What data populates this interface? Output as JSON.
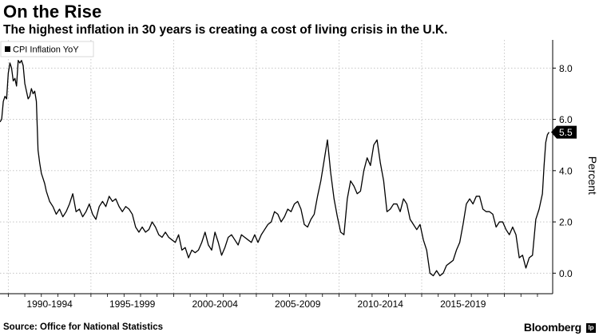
{
  "header": {
    "title": "On the Rise",
    "subtitle": "The highest inflation in 30 years is creating a cost of living crisis in the U.K."
  },
  "footer": {
    "source": "Source: Office for National Statistics",
    "brand": "Bloomberg",
    "brand_mark": "lp"
  },
  "colors": {
    "line": "#000000",
    "grid": "#bdbdbd",
    "background": "#ffffff",
    "badge": "#000000"
  },
  "chart_data": {
    "type": "line",
    "title": "On the Rise",
    "subtitle": "The highest inflation in 30 years is creating a cost of living crisis in the U.K.",
    "xlabel": "",
    "ylabel": "Percent",
    "legend": {
      "position": "top-left",
      "entries": [
        "CPI Inflation YoY"
      ]
    },
    "grid": true,
    "ylim": [
      -0.8,
      9.1
    ],
    "xlim": [
      1989.0,
      2022.42
    ],
    "y_ticks": [
      0.0,
      2.0,
      4.0,
      6.0,
      8.0
    ],
    "y_tick_labels": [
      "0.0",
      "2.0",
      "4.0",
      "6.0",
      "8.0"
    ],
    "x_period_labels": [
      "1990-1994",
      "1995-1999",
      "2000-2004",
      "2005-2009",
      "2010-2014",
      "2015-2019"
    ],
    "x_period_centers": [
      1992.0,
      1997.0,
      2002.0,
      2007.0,
      2012.0,
      2017.0
    ],
    "x_gridlines": [
      1989.5,
      1994.5,
      1999.5,
      2004.5,
      2009.5,
      2014.5,
      2019.5
    ],
    "last_value_label": "5.5",
    "series": [
      {
        "name": "CPI Inflation YoY",
        "points": [
          [
            1989.0,
            5.9
          ],
          [
            1989.1,
            6.0
          ],
          [
            1989.2,
            6.7
          ],
          [
            1989.3,
            6.9
          ],
          [
            1989.4,
            6.8
          ],
          [
            1989.5,
            7.8
          ],
          [
            1989.6,
            8.2
          ],
          [
            1989.7,
            8.0
          ],
          [
            1989.8,
            7.5
          ],
          [
            1989.9,
            7.6
          ],
          [
            1990.0,
            7.3
          ],
          [
            1990.1,
            8.3
          ],
          [
            1990.2,
            8.2
          ],
          [
            1990.3,
            8.3
          ],
          [
            1990.4,
            8.1
          ],
          [
            1990.5,
            7.4
          ],
          [
            1990.6,
            7.1
          ],
          [
            1990.7,
            6.8
          ],
          [
            1990.8,
            6.9
          ],
          [
            1990.9,
            7.2
          ],
          [
            1991.0,
            7.0
          ],
          [
            1991.1,
            7.1
          ],
          [
            1991.2,
            6.7
          ],
          [
            1991.3,
            4.8
          ],
          [
            1991.4,
            4.3
          ],
          [
            1991.5,
            3.9
          ],
          [
            1991.6,
            3.7
          ],
          [
            1991.7,
            3.5
          ],
          [
            1991.8,
            3.2
          ],
          [
            1991.9,
            3.0
          ],
          [
            1992.0,
            2.8
          ],
          [
            1992.2,
            2.6
          ],
          [
            1992.4,
            2.3
          ],
          [
            1992.6,
            2.5
          ],
          [
            1992.8,
            2.2
          ],
          [
            1993.0,
            2.4
          ],
          [
            1993.2,
            2.7
          ],
          [
            1993.4,
            3.1
          ],
          [
            1993.6,
            2.4
          ],
          [
            1993.8,
            2.5
          ],
          [
            1994.0,
            2.2
          ],
          [
            1994.2,
            2.4
          ],
          [
            1994.4,
            2.7
          ],
          [
            1994.6,
            2.3
          ],
          [
            1994.8,
            2.1
          ],
          [
            1995.0,
            2.6
          ],
          [
            1995.2,
            2.8
          ],
          [
            1995.4,
            2.6
          ],
          [
            1995.6,
            3.0
          ],
          [
            1995.8,
            2.8
          ],
          [
            1996.0,
            2.9
          ],
          [
            1996.2,
            2.6
          ],
          [
            1996.4,
            2.4
          ],
          [
            1996.6,
            2.6
          ],
          [
            1996.8,
            2.5
          ],
          [
            1997.0,
            2.3
          ],
          [
            1997.2,
            1.8
          ],
          [
            1997.4,
            1.6
          ],
          [
            1997.6,
            1.8
          ],
          [
            1997.8,
            1.6
          ],
          [
            1998.0,
            1.7
          ],
          [
            1998.2,
            2.0
          ],
          [
            1998.4,
            1.8
          ],
          [
            1998.6,
            1.5
          ],
          [
            1998.8,
            1.4
          ],
          [
            1999.0,
            1.6
          ],
          [
            1999.2,
            1.4
          ],
          [
            1999.4,
            1.3
          ],
          [
            1999.6,
            1.2
          ],
          [
            1999.8,
            1.5
          ],
          [
            2000.0,
            0.9
          ],
          [
            2000.2,
            1.0
          ],
          [
            2000.4,
            0.6
          ],
          [
            2000.6,
            0.9
          ],
          [
            2000.8,
            0.8
          ],
          [
            2001.0,
            0.9
          ],
          [
            2001.2,
            1.2
          ],
          [
            2001.4,
            1.6
          ],
          [
            2001.6,
            1.1
          ],
          [
            2001.8,
            0.9
          ],
          [
            2002.0,
            1.6
          ],
          [
            2002.2,
            1.2
          ],
          [
            2002.4,
            0.7
          ],
          [
            2002.6,
            1.0
          ],
          [
            2002.8,
            1.4
          ],
          [
            2003.0,
            1.5
          ],
          [
            2003.2,
            1.3
          ],
          [
            2003.4,
            1.1
          ],
          [
            2003.6,
            1.5
          ],
          [
            2003.8,
            1.4
          ],
          [
            2004.0,
            1.3
          ],
          [
            2004.2,
            1.2
          ],
          [
            2004.4,
            1.5
          ],
          [
            2004.6,
            1.2
          ],
          [
            2004.8,
            1.5
          ],
          [
            2005.0,
            1.7
          ],
          [
            2005.2,
            1.9
          ],
          [
            2005.4,
            2.0
          ],
          [
            2005.6,
            2.4
          ],
          [
            2005.8,
            2.3
          ],
          [
            2006.0,
            2.0
          ],
          [
            2006.2,
            2.2
          ],
          [
            2006.4,
            2.5
          ],
          [
            2006.6,
            2.4
          ],
          [
            2006.8,
            2.7
          ],
          [
            2007.0,
            2.8
          ],
          [
            2007.2,
            2.5
          ],
          [
            2007.4,
            1.9
          ],
          [
            2007.6,
            1.8
          ],
          [
            2007.8,
            2.1
          ],
          [
            2008.0,
            2.3
          ],
          [
            2008.2,
            3.0
          ],
          [
            2008.4,
            3.6
          ],
          [
            2008.6,
            4.4
          ],
          [
            2008.8,
            5.2
          ],
          [
            2009.0,
            3.9
          ],
          [
            2009.2,
            2.9
          ],
          [
            2009.4,
            2.2
          ],
          [
            2009.6,
            1.6
          ],
          [
            2009.8,
            1.5
          ],
          [
            2010.0,
            2.9
          ],
          [
            2010.2,
            3.6
          ],
          [
            2010.4,
            3.4
          ],
          [
            2010.6,
            3.1
          ],
          [
            2010.8,
            3.2
          ],
          [
            2011.0,
            4.0
          ],
          [
            2011.2,
            4.5
          ],
          [
            2011.4,
            4.2
          ],
          [
            2011.6,
            5.0
          ],
          [
            2011.8,
            5.2
          ],
          [
            2012.0,
            4.3
          ],
          [
            2012.2,
            3.6
          ],
          [
            2012.4,
            2.4
          ],
          [
            2012.6,
            2.5
          ],
          [
            2012.8,
            2.7
          ],
          [
            2013.0,
            2.7
          ],
          [
            2013.2,
            2.4
          ],
          [
            2013.4,
            2.9
          ],
          [
            2013.6,
            2.7
          ],
          [
            2013.8,
            2.1
          ],
          [
            2014.0,
            1.9
          ],
          [
            2014.2,
            1.7
          ],
          [
            2014.4,
            1.9
          ],
          [
            2014.6,
            1.3
          ],
          [
            2014.8,
            0.9
          ],
          [
            2015.0,
            0.0
          ],
          [
            2015.2,
            -0.1
          ],
          [
            2015.4,
            0.1
          ],
          [
            2015.6,
            -0.1
          ],
          [
            2015.8,
            0.0
          ],
          [
            2016.0,
            0.3
          ],
          [
            2016.2,
            0.4
          ],
          [
            2016.4,
            0.5
          ],
          [
            2016.6,
            0.9
          ],
          [
            2016.8,
            1.2
          ],
          [
            2017.0,
            1.9
          ],
          [
            2017.2,
            2.7
          ],
          [
            2017.4,
            2.9
          ],
          [
            2017.6,
            2.7
          ],
          [
            2017.8,
            3.0
          ],
          [
            2018.0,
            3.0
          ],
          [
            2018.2,
            2.5
          ],
          [
            2018.4,
            2.4
          ],
          [
            2018.6,
            2.4
          ],
          [
            2018.8,
            2.3
          ],
          [
            2019.0,
            1.8
          ],
          [
            2019.2,
            2.0
          ],
          [
            2019.4,
            2.0
          ],
          [
            2019.6,
            1.7
          ],
          [
            2019.8,
            1.5
          ],
          [
            2020.0,
            1.8
          ],
          [
            2020.2,
            1.5
          ],
          [
            2020.4,
            0.6
          ],
          [
            2020.6,
            0.7
          ],
          [
            2020.8,
            0.2
          ],
          [
            2021.0,
            0.6
          ],
          [
            2021.2,
            0.7
          ],
          [
            2021.4,
            2.1
          ],
          [
            2021.6,
            2.5
          ],
          [
            2021.8,
            3.1
          ],
          [
            2021.9,
            4.2
          ],
          [
            2022.0,
            5.1
          ],
          [
            2022.1,
            5.4
          ],
          [
            2022.2,
            5.5
          ]
        ]
      }
    ]
  }
}
